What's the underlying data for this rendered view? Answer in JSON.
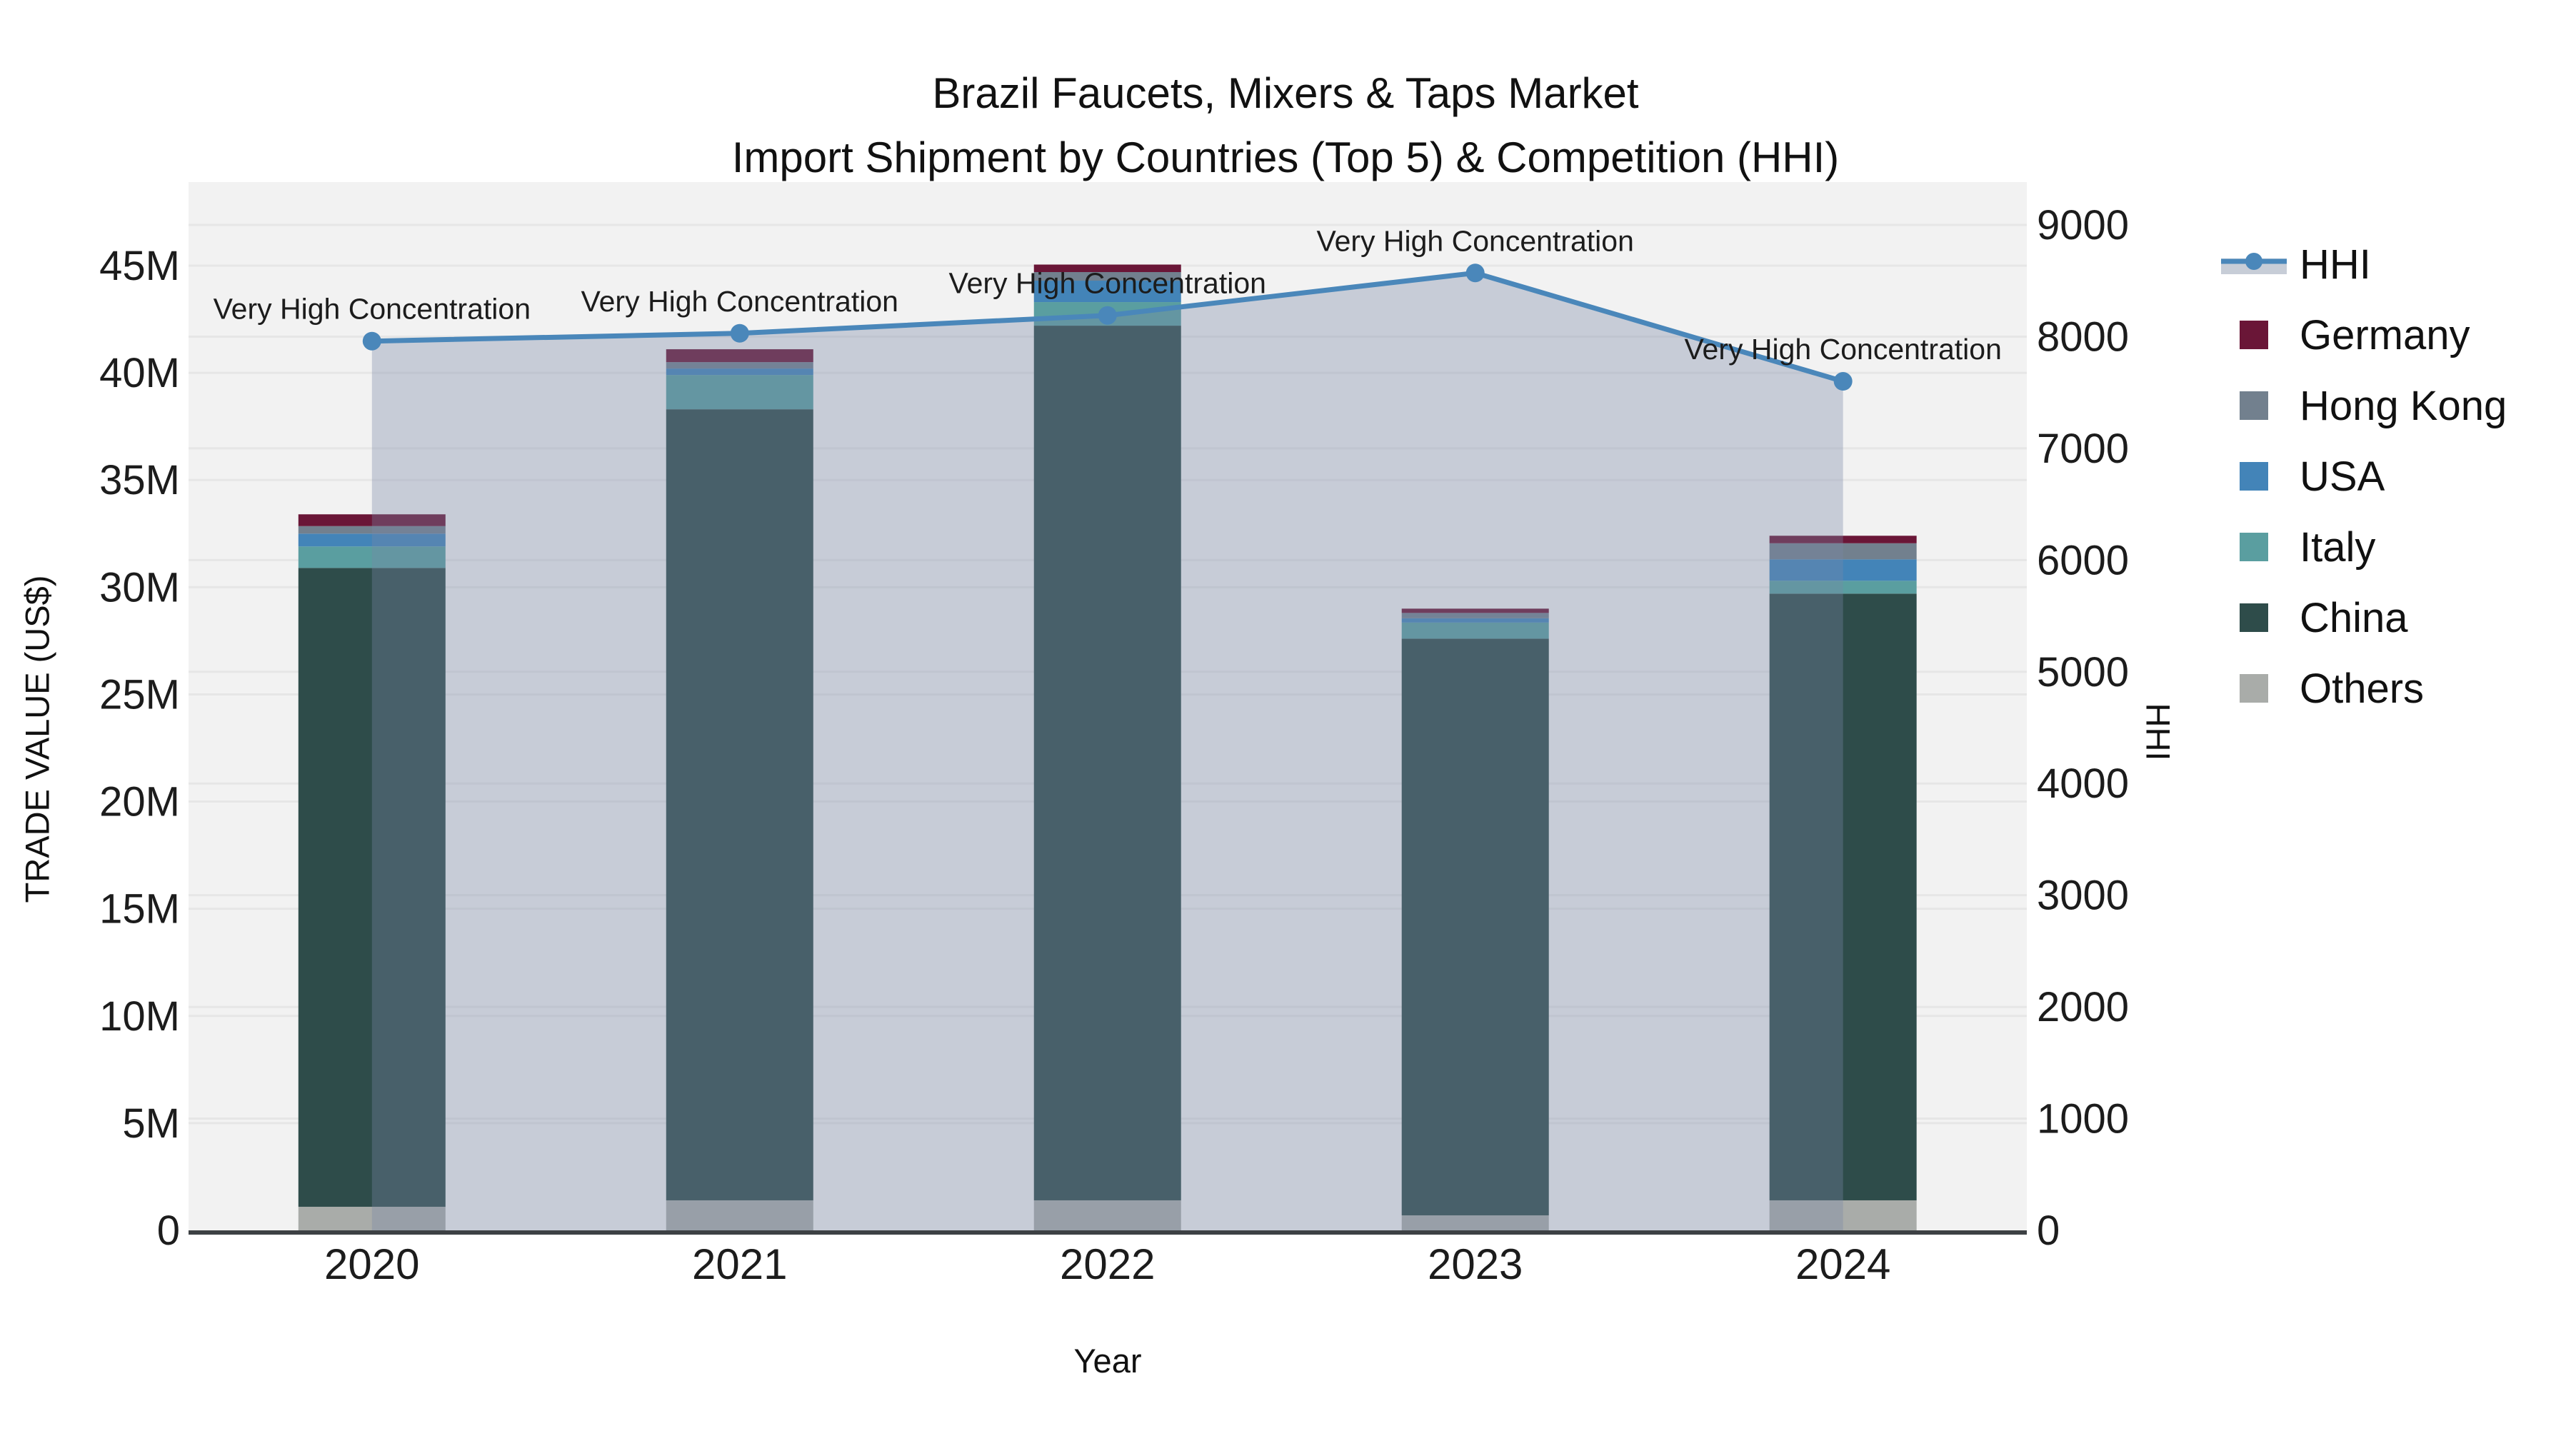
{
  "title": {
    "line1": "Brazil Faucets, Mixers & Taps Market",
    "line2": "Import Shipment by Countries (Top 5) & Competition (HHI)"
  },
  "axes": {
    "x": {
      "label": "Year",
      "ticks": [
        "2020",
        "2021",
        "2022",
        "2023",
        "2024"
      ]
    },
    "y_left": {
      "label": "TRADE VALUE (US$)",
      "ticks": [
        "0",
        "5M",
        "10M",
        "15M",
        "20M",
        "25M",
        "30M",
        "35M",
        "40M",
        "45M"
      ],
      "tick_step_millions": 5
    },
    "y_right": {
      "label": "HHI",
      "ticks": [
        "0",
        "1000",
        "2000",
        "3000",
        "4000",
        "5000",
        "6000",
        "7000",
        "8000",
        "9000"
      ],
      "tick_step": 1000
    }
  },
  "legend": {
    "items": [
      {
        "label": "HHI",
        "type": "line",
        "color": "#4a87ba",
        "band": "#c7cdd7"
      },
      {
        "label": "Germany",
        "type": "square",
        "color": "#6a1637"
      },
      {
        "label": "Hong Kong",
        "type": "square",
        "color": "#72808e"
      },
      {
        "label": "USA",
        "type": "square",
        "color": "#4384b8"
      },
      {
        "label": "Italy",
        "type": "square",
        "color": "#5a9ea0"
      },
      {
        "label": "China",
        "type": "square",
        "color": "#2e4c4a"
      },
      {
        "label": "Others",
        "type": "square",
        "color": "#a9aca9"
      }
    ]
  },
  "chart_data": {
    "type": "combo-stacked-bar-line",
    "categories": [
      "2020",
      "2021",
      "2022",
      "2023",
      "2024"
    ],
    "bar_value_unit": "million US$ (trade value)",
    "stack_order": "bottom to top",
    "series": [
      {
        "name": "Others",
        "color": "#a9aca9",
        "values": [
          1.1,
          1.4,
          1.4,
          0.7,
          1.4
        ]
      },
      {
        "name": "China",
        "color": "#2e4c4a",
        "values": [
          29.8,
          36.9,
          40.8,
          26.9,
          28.3
        ]
      },
      {
        "name": "Italy",
        "color": "#5a9ea0",
        "values": [
          1.0,
          1.6,
          1.1,
          0.75,
          0.6
        ]
      },
      {
        "name": "USA",
        "color": "#4384b8",
        "values": [
          0.6,
          0.3,
          1.0,
          0.2,
          1.0
        ]
      },
      {
        "name": "Hong Kong",
        "color": "#72808e",
        "values": [
          0.35,
          0.3,
          0.4,
          0.25,
          0.75
        ]
      },
      {
        "name": "Germany",
        "color": "#6a1637",
        "values": [
          0.55,
          0.6,
          0.35,
          0.2,
          0.35
        ]
      }
    ],
    "bar_totals_millions": [
      33.4,
      41.1,
      45.05,
      29.0,
      32.4
    ],
    "line_series": {
      "name": "HHI",
      "axis": "right",
      "color": "#4a87ba",
      "area_fill": "rgba(119,136,166,0.35)",
      "values": [
        7960,
        8030,
        8190,
        8570,
        7600
      ]
    },
    "annotations": [
      {
        "category": "2020",
        "text": "Very High Concentration"
      },
      {
        "category": "2021",
        "text": "Very High Concentration"
      },
      {
        "category": "2022",
        "text": "Very High Concentration"
      },
      {
        "category": "2023",
        "text": "Very High Concentration"
      },
      {
        "category": "2024",
        "text": "Very High Concentration"
      }
    ],
    "ylim_left_millions": [
      0,
      45
    ],
    "ylim_right": [
      0,
      9000
    ],
    "grid": true,
    "legend_position": "right",
    "plot_background": "#f2f2f2",
    "grid_color": "#e6e6e6",
    "axis_line_color": "#3d4144"
  }
}
